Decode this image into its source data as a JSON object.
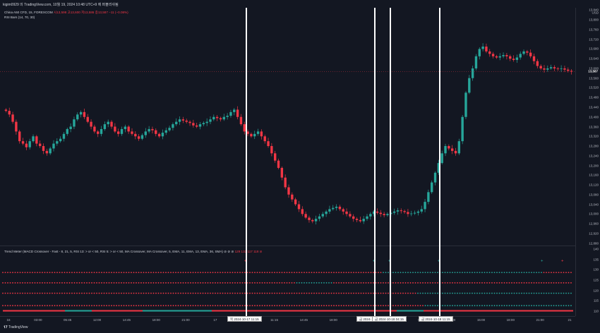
{
  "header": {
    "text": "kigim0929 의 TradingView.com, 10월 19, 2024 10:48 UTC+9 에 퍼블리쉬됨"
  },
  "main_legend": {
    "symbol": "China A50 CFD, 15, FOREXCOM",
    "ohlc": "시13,598  고13,600  저13,586  종13,587  −11 (−0.08%)",
    "indicator": "RSI Bars (14, 70, 30)"
  },
  "lower_legend": {
    "text": "Trend Meter (MACD Crossover - Fast - 8, 21, 5, RSI 13: > or < 50, RSI 5: > or < 50, MA Crossover, MA Crossover, 5, EMA, 11, EMA, 13, EMA, 36, SMA)  ⊘ ⊘ ⊘",
    "values": "129  132  117  118  ⊘"
  },
  "price_axis": {
    "currency": "USD",
    "ticks": [
      "13,840",
      "13,800",
      "13,760",
      "13,720",
      "13,680",
      "13,640",
      "13,600",
      "13,560",
      "13,520",
      "13,480",
      "13,440",
      "13,400",
      "13,360",
      "13,320",
      "13,280",
      "13,240",
      "13,200",
      "13,160",
      "13,120",
      "13,080",
      "13,040",
      "13,000",
      "12,960",
      "12,920",
      "12,880"
    ],
    "current": "13,587"
  },
  "lower_axis": {
    "ticks": [
      "140",
      "135",
      "130",
      "125",
      "120",
      "115",
      "110"
    ]
  },
  "time_axis": {
    "ticks": [
      "16",
      "03:00",
      "05:45",
      "12:00",
      "14:45",
      "18:00",
      "21:00",
      "17",
      "03:00",
      "11:15",
      "14:45",
      "18:00",
      "21:00",
      "18",
      "06:00",
      "09:00",
      "15:00",
      "18:00",
      "21:00",
      "21"
    ]
  },
  "time_tags": [
    "목 2024-10-17  11:15",
    "금 2024-",
    "금 2024-10-18  04:15",
    "금 2024-10-18  11:15"
  ],
  "footer": {
    "brand": "TradingView"
  },
  "colors": {
    "up": "#26a69a",
    "down": "#f23645",
    "bg": "#131722",
    "line": "#ffffff",
    "grid": "#2a2e39"
  },
  "chart_data": {
    "type": "candlestick",
    "series_note": "",
    "close": [
      13425,
      13410,
      13380,
      13340,
      13300,
      13290,
      13275,
      13300,
      13320,
      13290,
      13280,
      13260,
      13250,
      13270,
      13290,
      13300,
      13310,
      13330,
      13350,
      13360,
      13390,
      13410,
      13420,
      13400,
      13380,
      13360,
      13340,
      13330,
      13350,
      13370,
      13380,
      13360,
      13340,
      13330,
      13350,
      13360,
      13340,
      13330,
      13320,
      13310,
      13325,
      13340,
      13350,
      13345,
      13330,
      13320,
      13335,
      13345,
      13355,
      13370,
      13380,
      13390,
      13385,
      13380,
      13375,
      13365,
      13360,
      13370,
      13375,
      13380,
      13390,
      13400,
      13395,
      13390,
      13400,
      13405,
      13420,
      13430,
      13400,
      13370,
      13340,
      13330,
      13320,
      13330,
      13340,
      13320,
      13300,
      13280,
      13250,
      13220,
      13190,
      13150,
      13110,
      13080,
      13060,
      13040,
      13020,
      13000,
      12985,
      12975,
      12970,
      12980,
      12990,
      13000,
      13010,
      13020,
      13025,
      13030,
      13020,
      13010,
      13000,
      12990,
      12980,
      12975,
      12970,
      12980,
      12990,
      13000,
      13010,
      13005,
      13000,
      12995,
      13000,
      13005,
      13010,
      13015,
      13012,
      13008,
      13000,
      13002,
      13005,
      13010,
      13020,
      13050,
      13090,
      13130,
      13170,
      13210,
      13250,
      13280,
      13270,
      13260,
      13250,
      13300,
      13400,
      13500,
      13560,
      13600,
      13650,
      13680,
      13690,
      13670,
      13660,
      13650,
      13645,
      13650,
      13655,
      13650,
      13640,
      13635,
      13645,
      13660,
      13670,
      13665,
      13650,
      13630,
      13610,
      13600,
      13595,
      13600,
      13605,
      13600,
      13598,
      13600,
      13595,
      13590,
      13587
    ],
    "price_range": [
      12870,
      13850
    ],
    "trend_meter_rows": [
      {
        "value": 129,
        "color": "mixed"
      },
      {
        "value": 124,
        "color": "mixed"
      },
      {
        "value": 119,
        "color": "mixed"
      },
      {
        "value": 113,
        "color": "mixed"
      }
    ],
    "lower_range": [
      110,
      140
    ]
  }
}
